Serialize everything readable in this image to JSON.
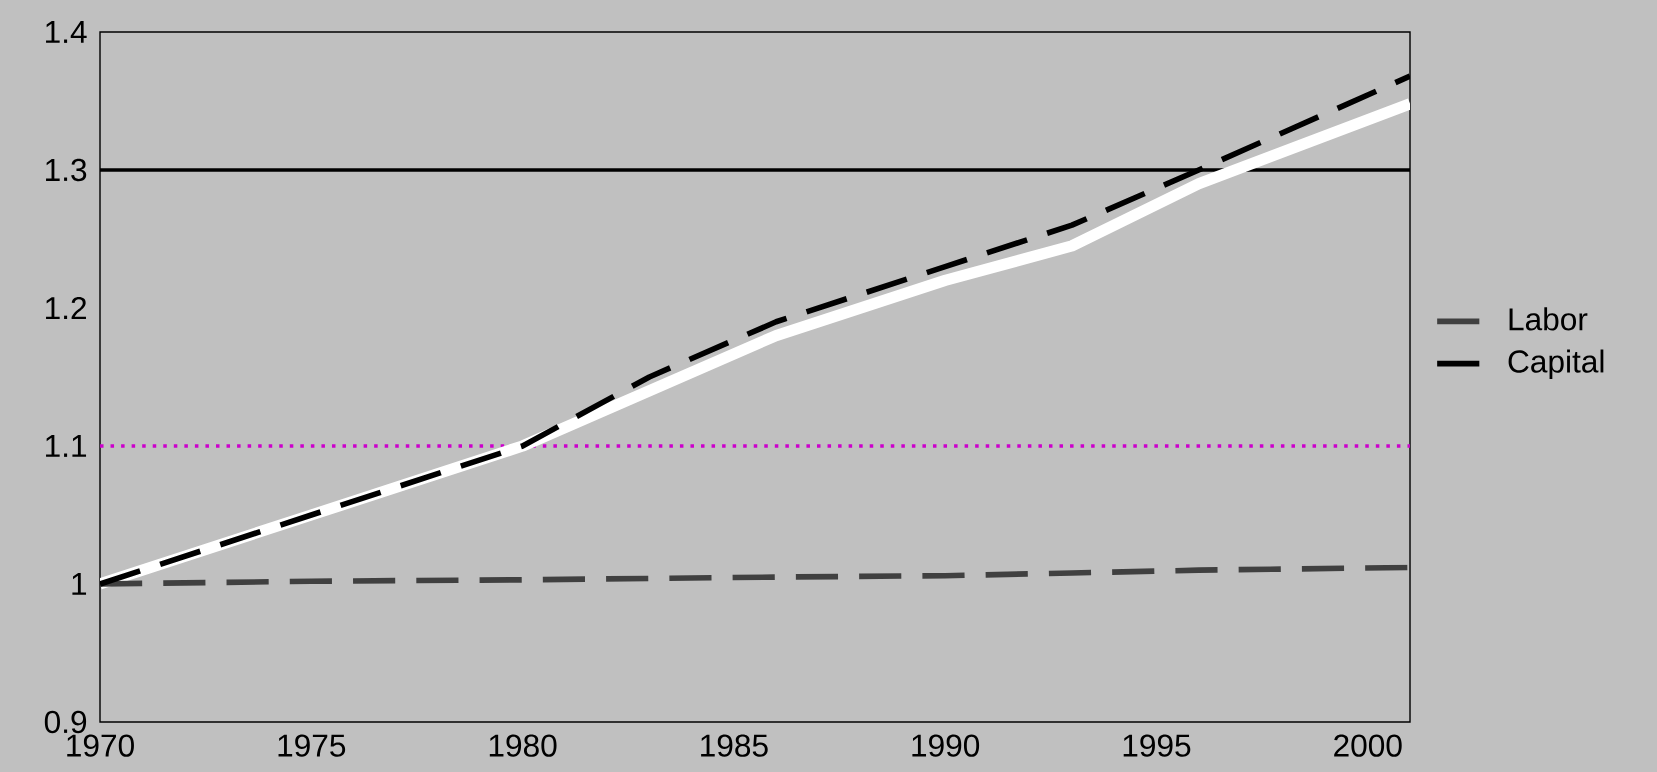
{
  "chart_data": {
    "type": "line",
    "x": [
      1970,
      1975,
      1980,
      1983,
      1986,
      1990,
      1993,
      1996,
      2001
    ],
    "series": [
      {
        "name": "Capital",
        "color": "#000000",
        "line_style": "dashed",
        "values": [
          1.0,
          1.05,
          1.1,
          1.15,
          1.19,
          1.23,
          1.26,
          1.3,
          1.368
        ]
      },
      {
        "name": "Labor",
        "color": "#404040",
        "line_style": "dashed",
        "values": [
          1.0,
          1.002,
          1.003,
          1.004,
          1.005,
          1.006,
          1.008,
          1.01,
          1.012
        ]
      },
      {
        "color": "#ffffff",
        "line_style": "solid",
        "values": [
          1.0,
          1.05,
          1.1,
          1.14,
          1.18,
          1.22,
          1.245,
          1.29,
          1.348
        ]
      }
    ],
    "xlim": [
      1970,
      2001
    ],
    "xticks": [
      1970,
      1975,
      1980,
      1985,
      1990,
      1995,
      2000
    ],
    "ylim": [
      0.9,
      1.4
    ],
    "yticks": [
      0.9,
      1,
      1.1,
      1.2,
      1.3,
      1.4
    ],
    "ref_lines": [
      {
        "axis": "y",
        "value": 1.3,
        "color": "#000000",
        "line_style": "solid"
      },
      {
        "axis": "y",
        "value": 1.1,
        "color": "#cc00cc",
        "line_style": "dotted"
      }
    ],
    "legend": "right"
  }
}
